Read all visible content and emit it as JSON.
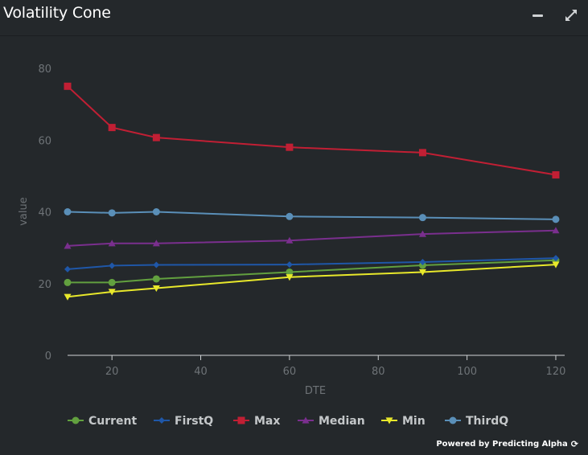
{
  "header": {
    "title": "Volatility Cone"
  },
  "footer": {
    "powered_by": "Powered by Predicting Alpha",
    "logo_icon": "spinner-icon"
  },
  "chart_data": {
    "type": "line",
    "xlabel": "DTE",
    "ylabel": "value",
    "xlim": [
      10,
      122
    ],
    "ylim": [
      0,
      80
    ],
    "x_ticks": [
      20,
      40,
      60,
      80,
      100,
      120
    ],
    "y_ticks": [
      0,
      20,
      40,
      60,
      80
    ],
    "grid": false,
    "legend_position": "bottom",
    "x": [
      10,
      20,
      30,
      60,
      90,
      120
    ],
    "series": [
      {
        "name": "Current",
        "color": "#62a03f",
        "marker": "circle",
        "values": [
          20.3,
          20.3,
          21.3,
          23.2,
          25.1,
          26.5
        ]
      },
      {
        "name": "FirstQ",
        "color": "#1f57a8",
        "marker": "diamond",
        "values": [
          24.0,
          25.0,
          25.2,
          25.3,
          26.0,
          27.1
        ]
      },
      {
        "name": "Max",
        "color": "#c11f34",
        "marker": "square",
        "values": [
          75.0,
          63.5,
          60.7,
          58.0,
          56.5,
          50.3
        ]
      },
      {
        "name": "Median",
        "color": "#7a2f8e",
        "marker": "triangle",
        "values": [
          30.5,
          31.2,
          31.2,
          32.0,
          33.8,
          34.8
        ]
      },
      {
        "name": "Min",
        "color": "#e8e82b",
        "marker": "triangle-down",
        "values": [
          16.3,
          17.7,
          18.7,
          21.8,
          23.2,
          25.3
        ]
      },
      {
        "name": "ThirdQ",
        "color": "#5a8fb8",
        "marker": "circle",
        "values": [
          40.0,
          39.7,
          40.0,
          38.7,
          38.4,
          37.9
        ]
      }
    ]
  }
}
